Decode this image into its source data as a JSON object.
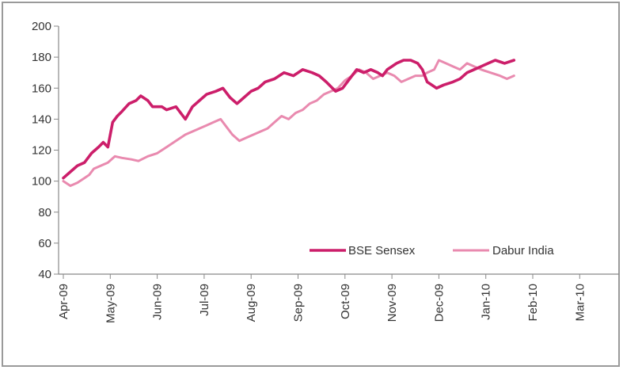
{
  "chart_data": {
    "type": "line",
    "title": "",
    "xlabel": "",
    "ylabel": "",
    "ylim": [
      40,
      200
    ],
    "yticks": [
      40,
      60,
      80,
      100,
      120,
      140,
      160,
      180,
      200
    ],
    "categories": [
      "Apr-09",
      "May-09",
      "Jun-09",
      "Jul-09",
      "Aug-09",
      "Sep-09",
      "Oct-09",
      "Nov-09",
      "Dec-09",
      "Jan-10",
      "Feb-10",
      "Mar-10"
    ],
    "legend_position": "bottom-right",
    "grid": false,
    "series": [
      {
        "name": "BSE Sensex",
        "color": "#cc1e6a",
        "points": [
          [
            0.0,
            102
          ],
          [
            0.15,
            106
          ],
          [
            0.3,
            110
          ],
          [
            0.45,
            112
          ],
          [
            0.6,
            118
          ],
          [
            0.75,
            122
          ],
          [
            0.85,
            125
          ],
          [
            0.95,
            122
          ],
          [
            1.05,
            138
          ],
          [
            1.15,
            142
          ],
          [
            1.25,
            145
          ],
          [
            1.4,
            150
          ],
          [
            1.55,
            152
          ],
          [
            1.65,
            155
          ],
          [
            1.8,
            152
          ],
          [
            1.9,
            148
          ],
          [
            2.1,
            148
          ],
          [
            2.2,
            146
          ],
          [
            2.4,
            148
          ],
          [
            2.6,
            140
          ],
          [
            2.75,
            148
          ],
          [
            2.9,
            152
          ],
          [
            3.05,
            156
          ],
          [
            3.25,
            158
          ],
          [
            3.4,
            160
          ],
          [
            3.55,
            154
          ],
          [
            3.7,
            150
          ],
          [
            3.85,
            154
          ],
          [
            4.0,
            158
          ],
          [
            4.15,
            160
          ],
          [
            4.3,
            164
          ],
          [
            4.5,
            166
          ],
          [
            4.7,
            170
          ],
          [
            4.9,
            168
          ],
          [
            5.0,
            170
          ],
          [
            5.1,
            172
          ],
          [
            5.3,
            170
          ],
          [
            5.45,
            168
          ],
          [
            5.6,
            164
          ],
          [
            5.8,
            158
          ],
          [
            5.95,
            160
          ],
          [
            6.1,
            166
          ],
          [
            6.25,
            172
          ],
          [
            6.4,
            170
          ],
          [
            6.55,
            172
          ],
          [
            6.7,
            170
          ],
          [
            6.8,
            168
          ],
          [
            6.9,
            172
          ],
          [
            7.0,
            174
          ],
          [
            7.1,
            176
          ],
          [
            7.25,
            178
          ],
          [
            7.4,
            178
          ],
          [
            7.55,
            176
          ],
          [
            7.65,
            172
          ],
          [
            7.75,
            164
          ],
          [
            7.85,
            162
          ],
          [
            7.95,
            160
          ],
          [
            8.1,
            162
          ],
          [
            8.3,
            164
          ],
          [
            8.45,
            166
          ],
          [
            8.6,
            170
          ],
          [
            8.75,
            172
          ],
          [
            8.9,
            174
          ],
          [
            9.05,
            176
          ],
          [
            9.2,
            178
          ],
          [
            9.4,
            176
          ],
          [
            9.6,
            178
          ]
        ]
      },
      {
        "name": "Dabur India",
        "color": "#e98aaf",
        "points": [
          [
            0.0,
            100
          ],
          [
            0.15,
            97
          ],
          [
            0.3,
            99
          ],
          [
            0.45,
            102
          ],
          [
            0.55,
            104
          ],
          [
            0.65,
            108
          ],
          [
            0.8,
            110
          ],
          [
            0.95,
            112
          ],
          [
            1.1,
            116
          ],
          [
            1.25,
            115
          ],
          [
            1.45,
            114
          ],
          [
            1.6,
            113
          ],
          [
            1.8,
            116
          ],
          [
            2.0,
            118
          ],
          [
            2.2,
            122
          ],
          [
            2.4,
            126
          ],
          [
            2.6,
            130
          ],
          [
            2.75,
            132
          ],
          [
            2.9,
            134
          ],
          [
            3.05,
            136
          ],
          [
            3.2,
            138
          ],
          [
            3.35,
            140
          ],
          [
            3.45,
            136
          ],
          [
            3.6,
            130
          ],
          [
            3.75,
            126
          ],
          [
            3.9,
            128
          ],
          [
            4.05,
            130
          ],
          [
            4.2,
            132
          ],
          [
            4.35,
            134
          ],
          [
            4.5,
            138
          ],
          [
            4.65,
            142
          ],
          [
            4.8,
            140
          ],
          [
            4.95,
            144
          ],
          [
            5.1,
            146
          ],
          [
            5.25,
            150
          ],
          [
            5.4,
            152
          ],
          [
            5.55,
            156
          ],
          [
            5.7,
            158
          ],
          [
            5.85,
            160
          ],
          [
            6.0,
            165
          ],
          [
            6.15,
            168
          ],
          [
            6.3,
            172
          ],
          [
            6.45,
            170
          ],
          [
            6.6,
            166
          ],
          [
            6.75,
            168
          ],
          [
            6.9,
            170
          ],
          [
            7.05,
            168
          ],
          [
            7.2,
            164
          ],
          [
            7.35,
            166
          ],
          [
            7.5,
            168
          ],
          [
            7.65,
            168
          ],
          [
            7.75,
            170
          ],
          [
            7.9,
            172
          ],
          [
            8.0,
            178
          ],
          [
            8.15,
            176
          ],
          [
            8.3,
            174
          ],
          [
            8.45,
            172
          ],
          [
            8.6,
            176
          ],
          [
            8.75,
            174
          ],
          [
            8.9,
            172
          ],
          [
            9.1,
            170
          ],
          [
            9.3,
            168
          ],
          [
            9.45,
            166
          ],
          [
            9.6,
            168
          ]
        ]
      }
    ]
  }
}
